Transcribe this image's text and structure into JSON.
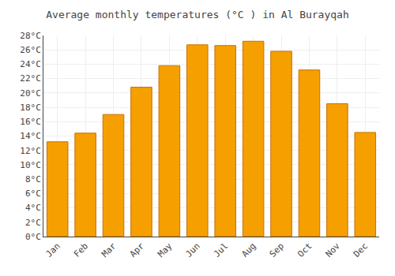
{
  "chart_data": {
    "type": "bar",
    "title": "Average monthly temperatures (°C ) in Al Burayqah",
    "categories": [
      "Jan",
      "Feb",
      "Mar",
      "Apr",
      "May",
      "Jun",
      "Jul",
      "Aug",
      "Sep",
      "Oct",
      "Nov",
      "Dec"
    ],
    "values": [
      13.2,
      14.4,
      17.0,
      20.8,
      23.8,
      26.7,
      26.6,
      27.2,
      25.8,
      23.2,
      18.5,
      14.5
    ],
    "color": "#F5A000",
    "ylim": [
      0,
      28
    ],
    "yticks": [
      {
        "value": 0,
        "label": "0°C"
      },
      {
        "value": 2,
        "label": "2°C"
      },
      {
        "value": 4,
        "label": "4°C"
      },
      {
        "value": 6,
        "label": "6°C"
      },
      {
        "value": 8,
        "label": "8°C"
      },
      {
        "value": 10,
        "label": "10°C"
      },
      {
        "value": 12,
        "label": "12°C"
      },
      {
        "value": 14,
        "label": "14°C"
      },
      {
        "value": 16,
        "label": "16°C"
      },
      {
        "value": 18,
        "label": "18°C"
      },
      {
        "value": 20,
        "label": "20°C"
      },
      {
        "value": 22,
        "label": "22°C"
      },
      {
        "value": 24,
        "label": "24°C"
      },
      {
        "value": 26,
        "label": "26°C"
      },
      {
        "value": 28,
        "label": "28°C"
      }
    ],
    "grid": true
  }
}
